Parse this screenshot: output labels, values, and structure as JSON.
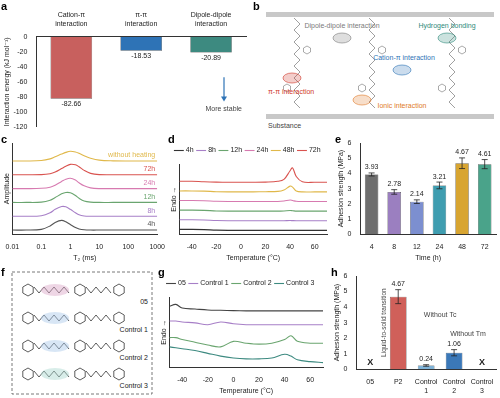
{
  "chart_data": [
    {
      "panel": "a",
      "type": "bar",
      "y_label": "Interaction energy (kJ mol⁻¹)",
      "categories": [
        "Cation-π interaction",
        "π-π interaction",
        "Dipole-dipole interaction"
      ],
      "values": [
        -82.66,
        -18.53,
        -20.89
      ],
      "colors": [
        "#c8605e",
        "#2e73b6",
        "#3d8a80"
      ],
      "ylim": [
        -120,
        0
      ],
      "yticks": [
        -120,
        -100,
        -80,
        -60,
        -40,
        -20,
        0
      ],
      "data_labels": true,
      "grid": false,
      "annotations": [
        "More stable"
      ]
    },
    {
      "panel": "c",
      "type": "line",
      "x_label": "T₂ (ms)",
      "y_label": "Amplitude",
      "log": "x",
      "x": [
        0.01,
        0.03,
        0.1,
        0.2,
        0.3,
        0.5,
        0.7,
        1,
        1.5,
        2,
        3,
        5,
        10,
        30,
        100,
        1000
      ],
      "series": [
        {
          "name": "4h",
          "color": "#555555",
          "values": [
            0,
            0,
            0.05,
            0.3,
            0.55,
            0.7,
            0.6,
            0.4,
            0.18,
            0.08,
            0.02,
            0,
            0,
            0,
            0,
            0
          ]
        },
        {
          "name": "8h",
          "color": "#a77fc7",
          "values": [
            1,
            1,
            1.04,
            1.25,
            1.5,
            1.7,
            1.68,
            1.5,
            1.25,
            1.1,
            1.02,
            1,
            1,
            1,
            1,
            1
          ]
        },
        {
          "name": "12h",
          "color": "#6aa56f",
          "values": [
            2,
            2,
            2.02,
            2.15,
            2.35,
            2.62,
            2.72,
            2.7,
            2.5,
            2.3,
            2.1,
            2.02,
            2,
            2,
            2,
            2
          ]
        },
        {
          "name": "24h",
          "color": "#d77ab0",
          "values": [
            3,
            3,
            3.02,
            3.1,
            3.25,
            3.52,
            3.68,
            3.75,
            3.62,
            3.42,
            3.2,
            3.05,
            3,
            3,
            3,
            3
          ]
        },
        {
          "name": "72h",
          "color": "#d9534f",
          "values": [
            4,
            4,
            4.01,
            4.08,
            4.2,
            4.45,
            4.62,
            4.75,
            4.72,
            4.58,
            4.32,
            4.1,
            4.01,
            4,
            4,
            4
          ]
        },
        {
          "name": "without heating",
          "color": "#e0b84a",
          "values": [
            5,
            5,
            5.03,
            5.15,
            5.3,
            5.5,
            5.62,
            5.7,
            5.65,
            5.55,
            5.38,
            5.2,
            5.06,
            5.01,
            5,
            5
          ]
        }
      ],
      "xlim": [
        0.01,
        1000
      ],
      "xticks": [
        0.01,
        0.1,
        1,
        10,
        100,
        1000
      ],
      "ylim": [
        -0.3,
        6.3
      ],
      "tick_labels": "x",
      "grid": false
    },
    {
      "panel": "d",
      "type": "line",
      "x_label": "Temperature (°C)",
      "y_label": "Endo →",
      "x": [
        -50,
        -40,
        -30,
        -20,
        -10,
        0,
        10,
        20,
        30,
        35,
        40,
        42,
        45,
        50,
        60,
        70
      ],
      "series": [
        {
          "name": "4h",
          "color": "#333333",
          "values": [
            0.1,
            0.1,
            0.08,
            0.02,
            0,
            0,
            0,
            0,
            0,
            0,
            0,
            0,
            0,
            0,
            0,
            0
          ]
        },
        {
          "name": "8h",
          "color": "#a77fc7",
          "values": [
            1.1,
            1.1,
            1.08,
            1.02,
            1,
            1,
            1,
            1,
            1,
            1,
            1.02,
            1.01,
            1,
            1,
            1,
            1
          ]
        },
        {
          "name": "12h",
          "color": "#6aa56f",
          "values": [
            2.1,
            2.1,
            2.08,
            2.02,
            2,
            2,
            2,
            2,
            2,
            2.02,
            2.06,
            2.04,
            2,
            2,
            2,
            2
          ]
        },
        {
          "name": "24h",
          "color": "#d77ab0",
          "values": [
            3.1,
            3.1,
            3.08,
            3.02,
            3,
            3,
            3,
            3,
            3,
            3.05,
            3.15,
            3.1,
            3.02,
            3,
            3,
            3
          ]
        },
        {
          "name": "48h",
          "color": "#e0b84a",
          "values": [
            4.1,
            4.1,
            4.08,
            4.02,
            4,
            4,
            4,
            4.02,
            4.05,
            4.2,
            4.6,
            4.5,
            4.1,
            4,
            4,
            4
          ]
        },
        {
          "name": "72h",
          "color": "#d9534f",
          "values": [
            5.1,
            5.1,
            5.05,
            5.02,
            5,
            5,
            5,
            5.02,
            5.1,
            5.3,
            6.2,
            6.5,
            5.6,
            5.05,
            5,
            5
          ]
        }
      ],
      "xlim": [
        -50,
        70
      ],
      "xticks": [
        -40,
        -20,
        0,
        20,
        40,
        60
      ],
      "ylim": [
        -0.4,
        6.9
      ],
      "tick_labels": "x",
      "grid": false,
      "legend": "top"
    },
    {
      "panel": "e",
      "type": "bar",
      "x_label": "Time (h)",
      "y_label": "Adhesion strength (MPa)",
      "categories": [
        "4",
        "8",
        "12",
        "24",
        "48",
        "72"
      ],
      "values": [
        3.93,
        2.78,
        2.14,
        3.21,
        4.67,
        4.61
      ],
      "errors": [
        0.1,
        0.15,
        0.12,
        0.22,
        0.35,
        0.3
      ],
      "colors": [
        "#6e6e6e",
        "#9b7fc0",
        "#7c8fd0",
        "#3f9db0",
        "#d8a531",
        "#4aa38a"
      ],
      "ylim": [
        0,
        6
      ],
      "yticks": [
        0,
        1,
        2,
        3,
        4,
        5,
        6
      ],
      "data_labels": true,
      "grid": false
    },
    {
      "panel": "g",
      "type": "line",
      "x_label": "Temperature (°C)",
      "y_label": "Endo →",
      "x": [
        -50,
        -45,
        -40,
        -30,
        -20,
        -10,
        0,
        10,
        20,
        30,
        40,
        45,
        50,
        60,
        70
      ],
      "series": [
        {
          "name": "05",
          "color": "#444444",
          "values": [
            3.1,
            3.2,
            3.0,
            2.95,
            2.9,
            2.88,
            2.86,
            2.85,
            2.85,
            2.85,
            2.85,
            2.85,
            2.85,
            2.85,
            2.85
          ]
        },
        {
          "name": "Control 1",
          "color": "#a77fc7",
          "values": [
            2.3,
            2.3,
            2.25,
            2.2,
            2.1,
            2.25,
            2.15,
            2.1,
            2.1,
            2.1,
            2.1,
            2.1,
            2.1,
            2.1,
            2.1
          ]
        },
        {
          "name": "Control 2",
          "color": "#6aa56f",
          "values": [
            1.4,
            1.4,
            1.3,
            1.15,
            1.0,
            0.9,
            1.2,
            1.1,
            1.05,
            1.1,
            1.3,
            1.5,
            1.2,
            1.1,
            1.1
          ]
        },
        {
          "name": "Control 3",
          "color": "#3d8a80",
          "values": [
            0.9,
            0.85,
            0.8,
            0.7,
            0.55,
            0.4,
            0.3,
            0.25,
            0.25,
            0.3,
            0.5,
            0.4,
            0.2,
            0.1,
            0.05
          ]
        }
      ],
      "xlim": [
        -50,
        70
      ],
      "xticks": [
        -40,
        -20,
        0,
        20,
        40,
        60
      ],
      "ylim": [
        -0.2,
        3.6
      ],
      "tick_labels": "x",
      "grid": false,
      "legend": "top"
    },
    {
      "panel": "h",
      "type": "bar",
      "y_label": "Adhesion strength (MPa)",
      "categories": [
        "05",
        "P2",
        "Control 1",
        "Control 2",
        "Control 3"
      ],
      "values": [
        null,
        4.67,
        0.24,
        1.06,
        null
      ],
      "value_labels": [
        "X",
        "4.67",
        "0.24",
        "1.06",
        "X"
      ],
      "errors": [
        null,
        0.45,
        0.05,
        0.2,
        null
      ],
      "colors": [
        "#999999",
        "#d0605a",
        "#7fb3d8",
        "#3b78b8",
        "#3d8a80"
      ],
      "ylim": [
        0,
        6
      ],
      "yticks": [
        0,
        1,
        2,
        3,
        4,
        5,
        6
      ],
      "data_labels": true,
      "grid": false,
      "annotations": [
        {
          "text": "Liquid-to-solid transition",
          "category": "05"
        },
        {
          "text": "Without Tc",
          "category": "Control 1"
        },
        {
          "text": "Without Tm",
          "category": "Control 2"
        }
      ]
    }
  ],
  "diagrams": [
    {
      "panel": "b",
      "substrate": "Substance",
      "interactions": [
        "π-π interaction",
        "Dipole-dipole interaction",
        "Hydrogen bonding",
        "Cation-π interaction",
        "Ionic interaction"
      ]
    },
    {
      "panel": "f",
      "molecules": [
        "05",
        "Control 1",
        "Control 2",
        "Control 3"
      ]
    }
  ]
}
